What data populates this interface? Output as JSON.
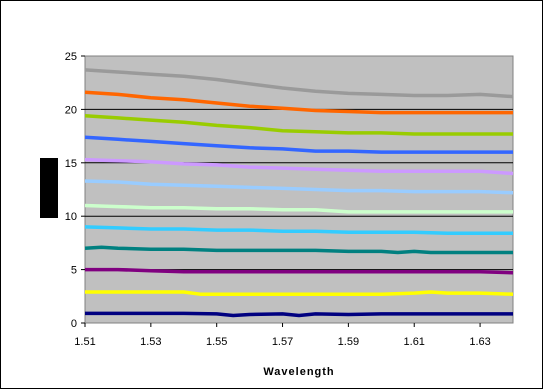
{
  "chart_data": {
    "type": "line",
    "title": "",
    "xlabel": "Wavelength",
    "ylabel": "",
    "xlim": [
      1.51,
      1.64
    ],
    "ylim": [
      0,
      25
    ],
    "xticks": [
      "1.51",
      "1.53",
      "1.55",
      "1.57",
      "1.59",
      "1.61",
      "1.63"
    ],
    "yticks": [
      "0",
      "5",
      "10",
      "15",
      "20",
      "25"
    ],
    "grid": "horizontal",
    "legend": "none",
    "plot_background": "#c0c0c0",
    "series": [
      {
        "color": "#9a9a9a",
        "points": [
          [
            1.51,
            23.7
          ],
          [
            1.52,
            23.5
          ],
          [
            1.53,
            23.3
          ],
          [
            1.54,
            23.1
          ],
          [
            1.55,
            22.8
          ],
          [
            1.56,
            22.4
          ],
          [
            1.57,
            22.0
          ],
          [
            1.58,
            21.7
          ],
          [
            1.59,
            21.5
          ],
          [
            1.6,
            21.4
          ],
          [
            1.61,
            21.3
          ],
          [
            1.62,
            21.3
          ],
          [
            1.63,
            21.4
          ],
          [
            1.64,
            21.2
          ]
        ]
      },
      {
        "color": "#ff6600",
        "points": [
          [
            1.51,
            21.6
          ],
          [
            1.52,
            21.4
          ],
          [
            1.53,
            21.1
          ],
          [
            1.54,
            20.9
          ],
          [
            1.55,
            20.6
          ],
          [
            1.56,
            20.3
          ],
          [
            1.57,
            20.1
          ],
          [
            1.58,
            19.9
          ],
          [
            1.59,
            19.8
          ],
          [
            1.6,
            19.7
          ],
          [
            1.61,
            19.7
          ],
          [
            1.62,
            19.7
          ],
          [
            1.63,
            19.7
          ],
          [
            1.64,
            19.7
          ]
        ]
      },
      {
        "color": "#99cc00",
        "points": [
          [
            1.51,
            19.4
          ],
          [
            1.52,
            19.2
          ],
          [
            1.53,
            19.0
          ],
          [
            1.54,
            18.8
          ],
          [
            1.55,
            18.5
          ],
          [
            1.56,
            18.3
          ],
          [
            1.57,
            18.0
          ],
          [
            1.58,
            17.9
          ],
          [
            1.59,
            17.8
          ],
          [
            1.6,
            17.8
          ],
          [
            1.61,
            17.7
          ],
          [
            1.62,
            17.7
          ],
          [
            1.63,
            17.7
          ],
          [
            1.64,
            17.7
          ]
        ]
      },
      {
        "color": "#3366ff",
        "points": [
          [
            1.51,
            17.4
          ],
          [
            1.52,
            17.2
          ],
          [
            1.53,
            17.0
          ],
          [
            1.54,
            16.8
          ],
          [
            1.55,
            16.6
          ],
          [
            1.56,
            16.4
          ],
          [
            1.57,
            16.3
          ],
          [
            1.58,
            16.1
          ],
          [
            1.59,
            16.1
          ],
          [
            1.6,
            16.0
          ],
          [
            1.61,
            16.0
          ],
          [
            1.62,
            16.0
          ],
          [
            1.63,
            16.0
          ],
          [
            1.64,
            16.0
          ]
        ]
      },
      {
        "color": "#cc99ff",
        "points": [
          [
            1.51,
            15.3
          ],
          [
            1.52,
            15.2
          ],
          [
            1.53,
            15.1
          ],
          [
            1.54,
            14.9
          ],
          [
            1.55,
            14.8
          ],
          [
            1.56,
            14.6
          ],
          [
            1.57,
            14.5
          ],
          [
            1.58,
            14.4
          ],
          [
            1.59,
            14.3
          ],
          [
            1.6,
            14.2
          ],
          [
            1.61,
            14.2
          ],
          [
            1.62,
            14.2
          ],
          [
            1.63,
            14.2
          ],
          [
            1.64,
            14.0
          ]
        ]
      },
      {
        "color": "#99ccff",
        "points": [
          [
            1.51,
            13.3
          ],
          [
            1.52,
            13.2
          ],
          [
            1.53,
            13.0
          ],
          [
            1.54,
            12.9
          ],
          [
            1.55,
            12.8
          ],
          [
            1.56,
            12.7
          ],
          [
            1.57,
            12.6
          ],
          [
            1.58,
            12.5
          ],
          [
            1.59,
            12.4
          ],
          [
            1.6,
            12.4
          ],
          [
            1.61,
            12.3
          ],
          [
            1.62,
            12.3
          ],
          [
            1.63,
            12.3
          ],
          [
            1.64,
            12.2
          ]
        ]
      },
      {
        "color": "#ccffcc",
        "points": [
          [
            1.51,
            11.0
          ],
          [
            1.52,
            10.9
          ],
          [
            1.53,
            10.8
          ],
          [
            1.54,
            10.8
          ],
          [
            1.55,
            10.7
          ],
          [
            1.56,
            10.7
          ],
          [
            1.57,
            10.6
          ],
          [
            1.58,
            10.6
          ],
          [
            1.59,
            10.4
          ],
          [
            1.6,
            10.4
          ],
          [
            1.61,
            10.4
          ],
          [
            1.62,
            10.4
          ],
          [
            1.63,
            10.4
          ],
          [
            1.64,
            10.4
          ]
        ]
      },
      {
        "color": "#33ccff",
        "points": [
          [
            1.51,
            9.0
          ],
          [
            1.52,
            8.9
          ],
          [
            1.53,
            8.8
          ],
          [
            1.54,
            8.8
          ],
          [
            1.55,
            8.7
          ],
          [
            1.56,
            8.7
          ],
          [
            1.57,
            8.6
          ],
          [
            1.58,
            8.6
          ],
          [
            1.59,
            8.5
          ],
          [
            1.6,
            8.5
          ],
          [
            1.61,
            8.5
          ],
          [
            1.62,
            8.4
          ],
          [
            1.63,
            8.4
          ],
          [
            1.64,
            8.4
          ]
        ]
      },
      {
        "color": "#008080",
        "points": [
          [
            1.51,
            7.0
          ],
          [
            1.515,
            7.1
          ],
          [
            1.52,
            7.0
          ],
          [
            1.53,
            6.9
          ],
          [
            1.54,
            6.9
          ],
          [
            1.55,
            6.8
          ],
          [
            1.56,
            6.8
          ],
          [
            1.57,
            6.8
          ],
          [
            1.58,
            6.8
          ],
          [
            1.59,
            6.7
          ],
          [
            1.6,
            6.7
          ],
          [
            1.605,
            6.6
          ],
          [
            1.61,
            6.7
          ],
          [
            1.615,
            6.6
          ],
          [
            1.62,
            6.6
          ],
          [
            1.63,
            6.6
          ],
          [
            1.64,
            6.6
          ]
        ]
      },
      {
        "color": "#800080",
        "points": [
          [
            1.51,
            5.0
          ],
          [
            1.52,
            5.0
          ],
          [
            1.53,
            4.9
          ],
          [
            1.54,
            4.8
          ],
          [
            1.55,
            4.8
          ],
          [
            1.56,
            4.8
          ],
          [
            1.57,
            4.8
          ],
          [
            1.58,
            4.8
          ],
          [
            1.59,
            4.8
          ],
          [
            1.6,
            4.8
          ],
          [
            1.61,
            4.8
          ],
          [
            1.62,
            4.8
          ],
          [
            1.63,
            4.8
          ],
          [
            1.64,
            4.7
          ]
        ]
      },
      {
        "color": "#ffff00",
        "points": [
          [
            1.51,
            2.9
          ],
          [
            1.52,
            2.9
          ],
          [
            1.53,
            2.9
          ],
          [
            1.54,
            2.9
          ],
          [
            1.545,
            2.7
          ],
          [
            1.55,
            2.7
          ],
          [
            1.56,
            2.7
          ],
          [
            1.57,
            2.7
          ],
          [
            1.58,
            2.7
          ],
          [
            1.59,
            2.7
          ],
          [
            1.6,
            2.7
          ],
          [
            1.61,
            2.8
          ],
          [
            1.615,
            2.9
          ],
          [
            1.62,
            2.8
          ],
          [
            1.63,
            2.8
          ],
          [
            1.64,
            2.7
          ]
        ]
      },
      {
        "color": "#000080",
        "points": [
          [
            1.51,
            0.9
          ],
          [
            1.52,
            0.9
          ],
          [
            1.53,
            0.9
          ],
          [
            1.54,
            0.9
          ],
          [
            1.55,
            0.85
          ],
          [
            1.555,
            0.7
          ],
          [
            1.56,
            0.8
          ],
          [
            1.57,
            0.85
          ],
          [
            1.575,
            0.7
          ],
          [
            1.58,
            0.85
          ],
          [
            1.59,
            0.8
          ],
          [
            1.6,
            0.85
          ],
          [
            1.61,
            0.85
          ],
          [
            1.62,
            0.85
          ],
          [
            1.63,
            0.85
          ],
          [
            1.64,
            0.85
          ]
        ]
      }
    ]
  }
}
